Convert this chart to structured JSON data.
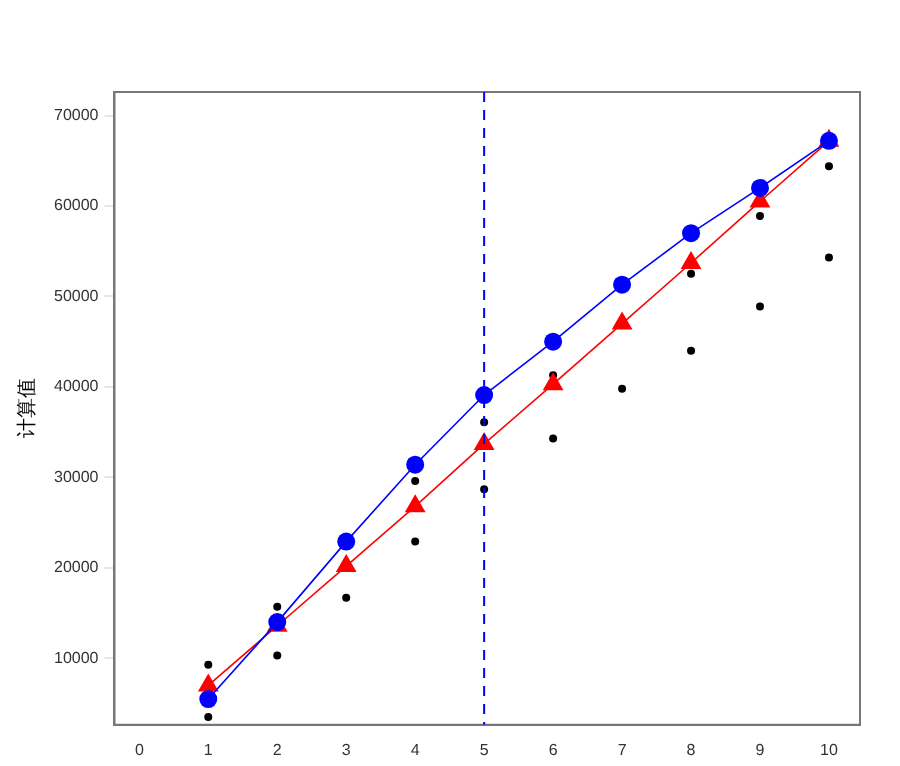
{
  "chart_data": {
    "type": "line",
    "ylabel": "计算值",
    "x": [
      1,
      2,
      3,
      4,
      5,
      6,
      7,
      8,
      9,
      10
    ],
    "xlim": [
      -0.36,
      10.45
    ],
    "xticks": [
      0,
      1,
      2,
      3,
      4,
      5,
      6,
      7,
      8,
      9,
      10
    ],
    "ylim": [
      2650,
      72600
    ],
    "yticks": [
      10000,
      20000,
      30000,
      40000,
      50000,
      60000,
      70000
    ],
    "grid": false,
    "legend": false,
    "line_style": "solid",
    "series": [
      {
        "type": "scatter",
        "color": "#000000",
        "marker": "circle",
        "x": [
          1,
          1,
          2,
          2,
          3,
          4,
          4,
          5,
          5,
          6,
          6,
          7,
          8,
          8,
          9,
          9,
          10,
          10
        ],
        "values": [
          9300,
          3500,
          15700,
          10300,
          16700,
          29600,
          22900,
          36100,
          28700,
          41300,
          34300,
          39800,
          52500,
          44000,
          58900,
          48900,
          64400,
          54300
        ]
      },
      {
        "type": "line",
        "color": "#ff0000",
        "marker": "triangle",
        "values": [
          7000,
          13600,
          20200,
          26800,
          33700,
          40300,
          47000,
          53700,
          60500,
          67200
        ]
      },
      {
        "type": "line",
        "color": "#0000ff",
        "marker": "circle",
        "values": [
          5500,
          14000,
          22900,
          31400,
          39100,
          45000,
          51300,
          57000,
          62000,
          67200
        ]
      }
    ],
    "ref_lines": [
      {
        "axis": "x",
        "value": 5,
        "color": "#0000ff",
        "line_style": "dashed"
      }
    ]
  }
}
